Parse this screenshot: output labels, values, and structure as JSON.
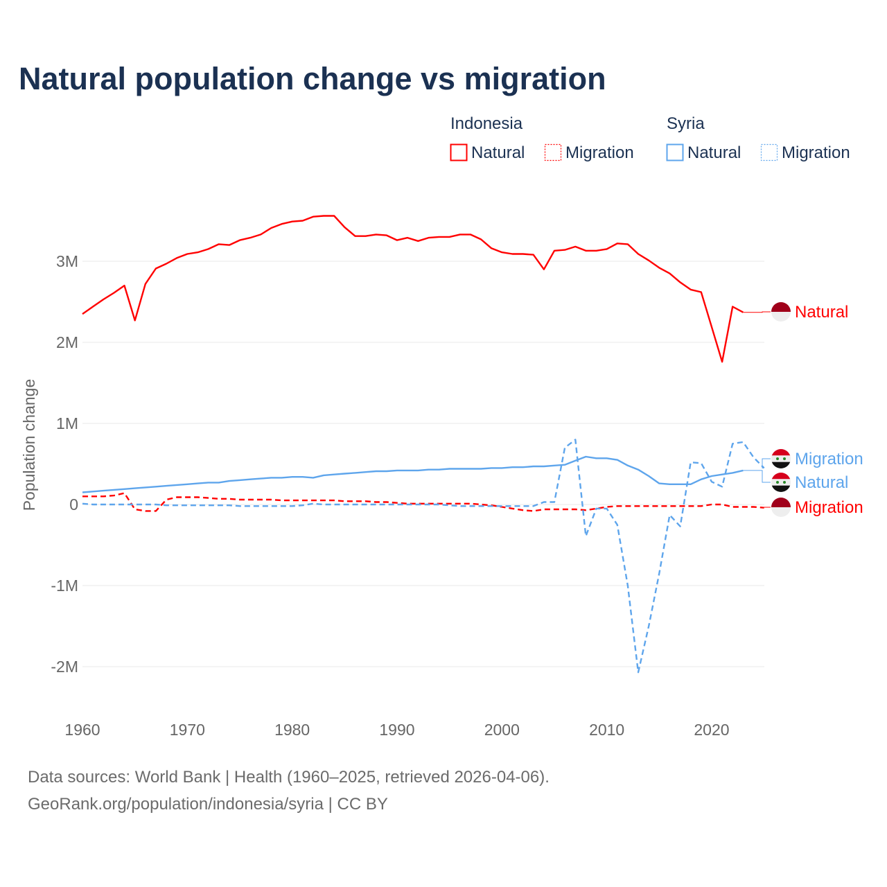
{
  "title": "Natural population change vs migration",
  "legend": {
    "groups": [
      {
        "name": "Indonesia",
        "items": [
          "Natural",
          "Migration"
        ],
        "color": "#ff0000"
      },
      {
        "name": "Syria",
        "items": [
          "Natural",
          "Migration"
        ],
        "color": "#5ea5ec"
      }
    ]
  },
  "source_line1": "Data sources: World Bank | Health (1960–2025, retrieved 2026-04-06).",
  "source_line2": "GeoRank.org/population/indonesia/syria | CC BY",
  "chart_data": {
    "type": "line",
    "title": "Natural population change vs migration",
    "xlabel": "",
    "ylabel": "Population change",
    "xlim": [
      1960,
      2025
    ],
    "ylim": [
      -2.5,
      3.8
    ],
    "y_unit": "millions",
    "grid": true,
    "x_ticks": [
      1960,
      1970,
      1980,
      1990,
      2000,
      2010,
      2020
    ],
    "x_tick_labels": [
      "1960",
      "1970",
      "1980",
      "1990",
      "2000",
      "2010",
      "2020"
    ],
    "y_ticks": [
      -2,
      -1,
      0,
      1,
      2,
      3
    ],
    "y_tick_labels": [
      "-2M",
      "-1M",
      "0",
      "1M",
      "2M",
      "3M"
    ],
    "legend_placement": "top-right",
    "series": [
      {
        "name": "Indonesia Natural",
        "label": "Natural",
        "country": "Indonesia",
        "color": "#ff0000",
        "dash": false,
        "start": 1960,
        "values": [
          2.35,
          2.44,
          2.53,
          2.61,
          2.7,
          2.27,
          2.72,
          2.91,
          2.97,
          3.04,
          3.09,
          3.11,
          3.15,
          3.21,
          3.2,
          3.26,
          3.29,
          3.33,
          3.41,
          3.46,
          3.49,
          3.5,
          3.55,
          3.56,
          3.56,
          3.42,
          3.31,
          3.31,
          3.33,
          3.32,
          3.26,
          3.29,
          3.25,
          3.29,
          3.3,
          3.3,
          3.33,
          3.33,
          3.27,
          3.16,
          3.11,
          3.09,
          3.09,
          3.08,
          2.9,
          3.13,
          3.14,
          3.18,
          3.13,
          3.13,
          3.15,
          3.22,
          3.21,
          3.09,
          3.01,
          2.92,
          2.85,
          2.74,
          2.65,
          2.62,
          2.19,
          1.76,
          2.44,
          2.37
        ]
      },
      {
        "name": "Indonesia Migration",
        "label": "Migration",
        "country": "Indonesia",
        "color": "#ff0000",
        "dash": true,
        "start": 1960,
        "values": [
          0.1,
          0.1,
          0.1,
          0.11,
          0.14,
          -0.06,
          -0.08,
          -0.08,
          0.06,
          0.09,
          0.09,
          0.09,
          0.08,
          0.07,
          0.07,
          0.06,
          0.06,
          0.06,
          0.06,
          0.05,
          0.05,
          0.05,
          0.05,
          0.05,
          0.05,
          0.04,
          0.04,
          0.04,
          0.03,
          0.03,
          0.02,
          0.01,
          0.01,
          0.01,
          0.01,
          0.01,
          0.01,
          0.01,
          0.0,
          -0.01,
          -0.03,
          -0.05,
          -0.07,
          -0.08,
          -0.06,
          -0.06,
          -0.06,
          -0.06,
          -0.07,
          -0.05,
          -0.03,
          -0.02,
          -0.02,
          -0.02,
          -0.02,
          -0.02,
          -0.02,
          -0.02,
          -0.02,
          -0.02,
          0.0,
          0.0,
          -0.03,
          -0.03,
          -0.03,
          -0.04
        ]
      },
      {
        "name": "Syria Natural",
        "label": "Natural",
        "country": "Syria",
        "color": "#5ea5ec",
        "dash": false,
        "start": 1960,
        "values": [
          0.15,
          0.16,
          0.17,
          0.18,
          0.19,
          0.2,
          0.21,
          0.22,
          0.23,
          0.24,
          0.25,
          0.26,
          0.27,
          0.27,
          0.29,
          0.3,
          0.31,
          0.32,
          0.33,
          0.33,
          0.34,
          0.34,
          0.33,
          0.36,
          0.37,
          0.38,
          0.39,
          0.4,
          0.41,
          0.41,
          0.42,
          0.42,
          0.42,
          0.43,
          0.43,
          0.44,
          0.44,
          0.44,
          0.44,
          0.45,
          0.45,
          0.46,
          0.46,
          0.47,
          0.47,
          0.48,
          0.49,
          0.54,
          0.59,
          0.57,
          0.57,
          0.55,
          0.48,
          0.43,
          0.35,
          0.26,
          0.25,
          0.25,
          0.25,
          0.31,
          0.35,
          0.37,
          0.39,
          0.42
        ]
      },
      {
        "name": "Syria Migration",
        "label": "Migration",
        "country": "Syria",
        "color": "#5ea5ec",
        "dash": true,
        "start": 1960,
        "values": [
          0.01,
          0.0,
          0.0,
          0.0,
          0.0,
          0.0,
          0.0,
          0.0,
          -0.01,
          -0.01,
          -0.01,
          -0.01,
          -0.01,
          -0.01,
          -0.01,
          -0.02,
          -0.02,
          -0.02,
          -0.02,
          -0.02,
          -0.02,
          -0.01,
          0.01,
          0.0,
          0.0,
          0.0,
          0.0,
          0.0,
          0.0,
          0.0,
          0.0,
          0.0,
          0.0,
          0.0,
          0.0,
          -0.01,
          -0.02,
          -0.02,
          -0.02,
          -0.02,
          -0.02,
          -0.02,
          -0.02,
          -0.02,
          0.03,
          0.03,
          0.7,
          0.8,
          -0.39,
          -0.05,
          -0.05,
          -0.25,
          -1.0,
          -2.07,
          -1.5,
          -0.85,
          -0.13,
          -0.27,
          0.52,
          0.51,
          0.28,
          0.22,
          0.75,
          0.77,
          0.58,
          0.45
        ]
      }
    ]
  }
}
